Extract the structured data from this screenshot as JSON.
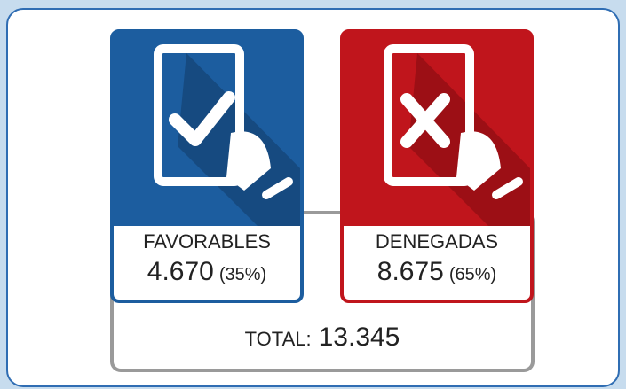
{
  "cards": [
    {
      "label": "FAVORABLES",
      "value": "4.670",
      "percent": "(35%)"
    },
    {
      "label": "DENEGADAS",
      "value": "8.675",
      "percent": "(65%)"
    }
  ],
  "total": {
    "label": "TOTAL:",
    "value": "13.345"
  }
}
